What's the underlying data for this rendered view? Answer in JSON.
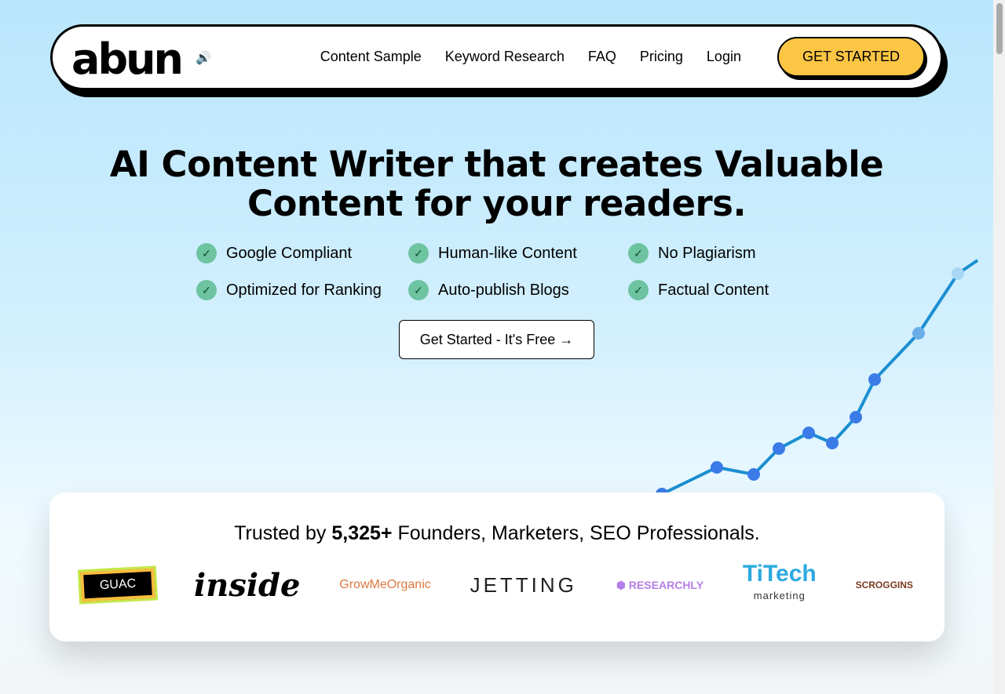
{
  "nav": {
    "logo": "abun",
    "links": [
      "Content Sample",
      "Keyword Research",
      "FAQ",
      "Pricing",
      "Login"
    ],
    "cta": "GET STARTED"
  },
  "hero": {
    "title_line1": "AI Content Writer that creates Valuable",
    "title_line2": "Content for your readers.",
    "features": [
      "Google Compliant",
      "Human-like Content",
      "No Plagiarism",
      "Optimized for Ranking",
      "Auto-publish Blogs",
      "Factual Content"
    ],
    "button": "Get Started - It's Free →"
  },
  "trust": {
    "prefix": "Trusted by ",
    "count": "5,325+",
    "suffix": " Founders, Marketers, SEO Professionals.",
    "logos": [
      "GUAC",
      "inside",
      "GrowMeOrganic",
      "JETTING",
      "RESEARCHLY",
      "TiTech",
      "marketing",
      "SCROGGINS"
    ]
  },
  "colors": {
    "accent": "#fcc645",
    "check": "#6ec3a0",
    "line": "#3b7be8"
  }
}
